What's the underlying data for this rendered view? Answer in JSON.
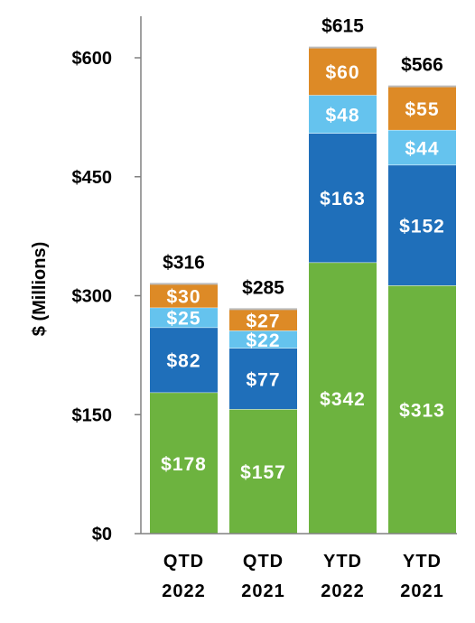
{
  "chart_data": {
    "type": "bar",
    "stacked": true,
    "categories": [
      [
        "QTD",
        "2022"
      ],
      [
        "QTD",
        "2021"
      ],
      [
        "YTD",
        "2022"
      ],
      [
        "YTD",
        "2021"
      ]
    ],
    "series": [
      {
        "values": [
          178,
          157,
          342,
          313
        ],
        "labels": [
          "$178",
          "$157",
          "$342",
          "$313"
        ],
        "color": "#6DB33F"
      },
      {
        "values": [
          82,
          77,
          163,
          152
        ],
        "labels": [
          "$82",
          "$77",
          "$163",
          "$152"
        ],
        "color": "#1F6FBA"
      },
      {
        "values": [
          25,
          22,
          48,
          44
        ],
        "labels": [
          "$25",
          "$22",
          "$48",
          "$44"
        ],
        "color": "#65C3EE"
      },
      {
        "values": [
          30,
          27,
          60,
          55
        ],
        "labels": [
          "$30",
          "$27",
          "$60",
          "$55"
        ],
        "color": "#DD8A26"
      }
    ],
    "totals": [
      "$316",
      "$285",
      "$615",
      "$566"
    ],
    "ylabel": "$ (Millions)",
    "ylim": [
      0,
      600
    ],
    "yticks": [
      0,
      150,
      300,
      450,
      600
    ],
    "ytick_labels": [
      "$0",
      "$150",
      "$300",
      "$450",
      "$600"
    ],
    "grid": false,
    "axis_color": "#808080"
  }
}
